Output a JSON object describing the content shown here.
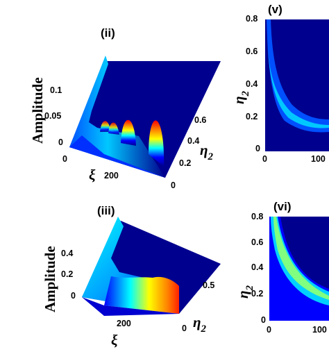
{
  "chart_data": [
    {
      "panel": "(ii)",
      "type": "surface",
      "zlabel": "Amplitude",
      "xlabel": "ξ",
      "ylabel": "η",
      "ylabel_sub": "2",
      "z_ticks": [
        "0",
        "0.05",
        "0.1"
      ],
      "x_ticks": [
        "0",
        "200"
      ],
      "y_ticks": [
        "0",
        "0.2",
        "0.4",
        "0.6"
      ],
      "zlim": [
        0,
        0.1
      ],
      "ylim": [
        0,
        0.7
      ],
      "xlim": [
        0,
        300
      ],
      "colormap": "jet",
      "peaks": [
        {
          "xi": 60,
          "eta2": 0.15,
          "amplitude": 0.03
        },
        {
          "xi": 100,
          "eta2": 0.13,
          "amplitude": 0.03
        },
        {
          "xi": 170,
          "eta2": 0.12,
          "amplitude": 0.055
        },
        {
          "xi": 250,
          "eta2": 0.1,
          "amplitude": 0.085
        }
      ]
    },
    {
      "panel": "(iii)",
      "type": "surface",
      "zlabel": "Amplitude",
      "xlabel": "ξ",
      "ylabel": "η",
      "ylabel_sub": "2",
      "z_ticks": [
        "0",
        "0.2",
        "0.4"
      ],
      "x_ticks": [
        "200"
      ],
      "y_ticks": [
        "0",
        "0.5"
      ],
      "zlim": [
        0,
        0.4
      ],
      "ylim": [
        0,
        0.8
      ],
      "colormap": "jet"
    },
    {
      "panel": "(v)",
      "type": "heatmap",
      "ylabel": "η",
      "ylabel_sub": "2",
      "x_ticks": [
        "0",
        "100"
      ],
      "y_ticks": [
        "0",
        "0.2",
        "0.4",
        "0.6",
        "0.8"
      ],
      "ylim": [
        0,
        0.8
      ],
      "colormap": "jet"
    },
    {
      "panel": "(vi)",
      "type": "heatmap",
      "ylabel": "η",
      "ylabel_sub": "2",
      "x_ticks": [
        "0",
        "100"
      ],
      "y_ticks": [
        "0",
        "0.2",
        "0.4",
        "0.6",
        "0.8"
      ],
      "ylim": [
        0,
        0.8
      ],
      "colormap": "jet"
    }
  ],
  "colors": {
    "background": "#00008f",
    "jet": [
      "#00008f",
      "#0000ff",
      "#0080ff",
      "#00ffff",
      "#80ff80",
      "#ffff00",
      "#ff8000",
      "#ff0000"
    ]
  }
}
